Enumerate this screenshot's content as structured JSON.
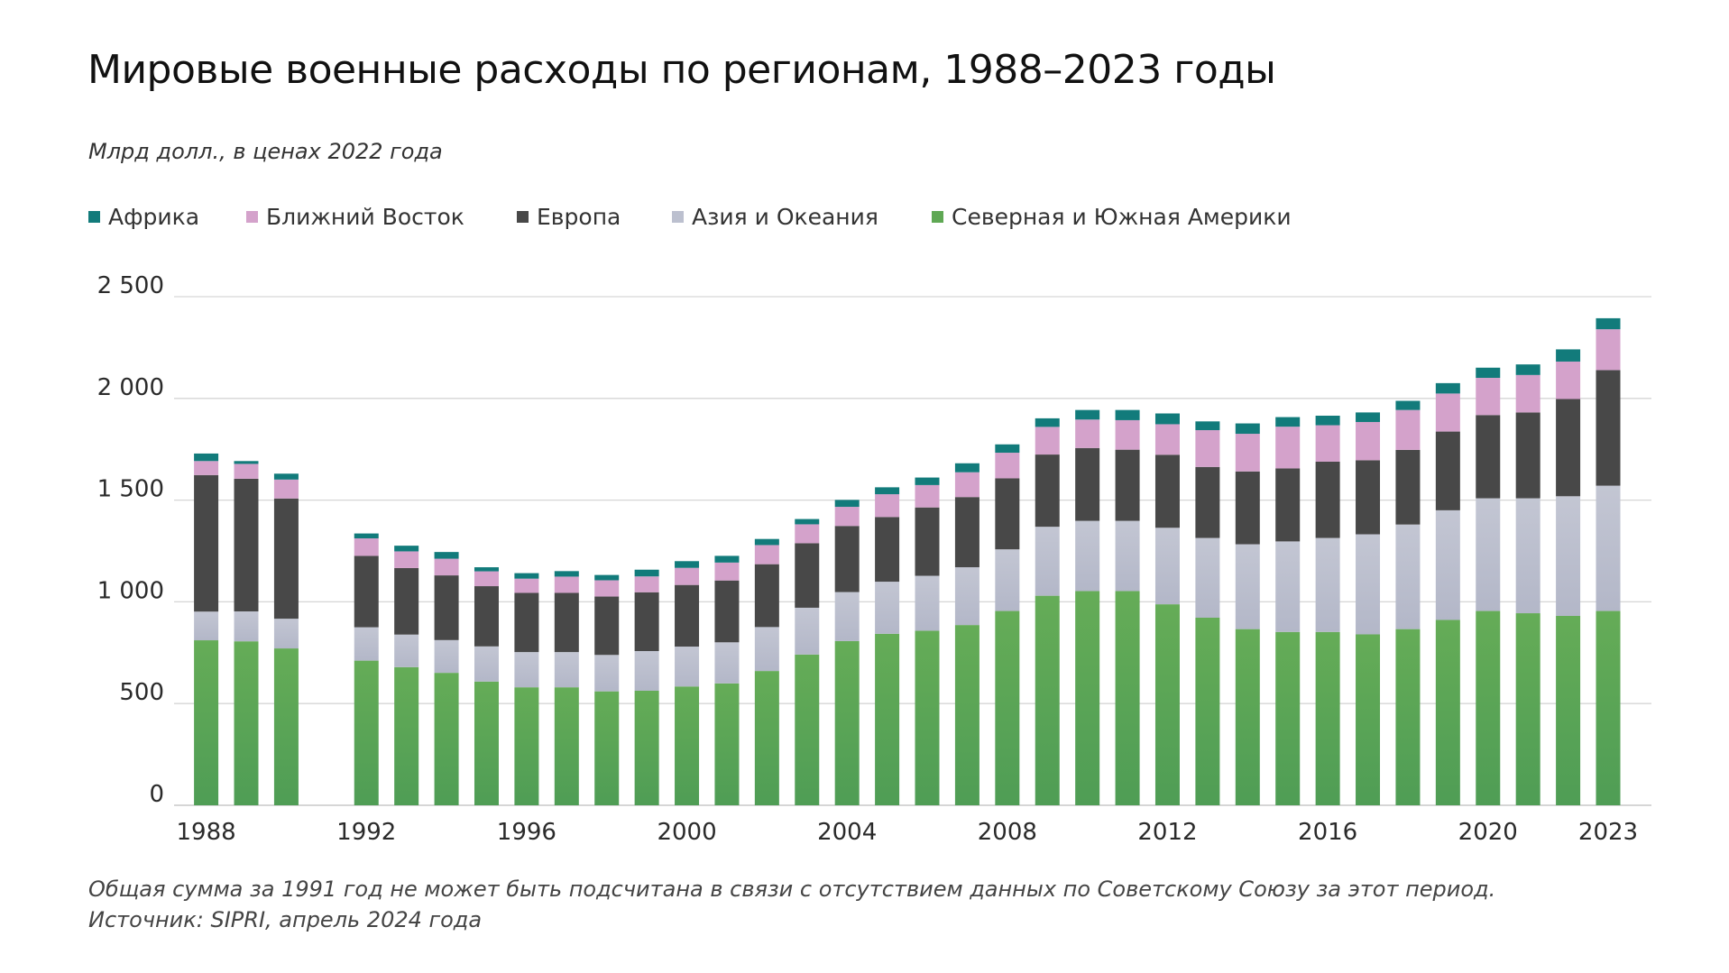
{
  "chart_data": {
    "type": "bar",
    "stacked": true,
    "title": "Мировые военные расходы по регионам, 1988–2023 годы",
    "subtitle": "Млрд долл., в ценах 2022 года",
    "xlabel": "",
    "ylabel": "",
    "ylim": [
      0,
      2500
    ],
    "grid": true,
    "legend_position": "top-left",
    "y_ticks": [
      {
        "value": 0,
        "label": "0"
      },
      {
        "value": 500,
        "label": "500"
      },
      {
        "value": 1000,
        "label": "1 000"
      },
      {
        "value": 1500,
        "label": "1 500"
      },
      {
        "value": 2000,
        "label": "2 000"
      },
      {
        "value": 2500,
        "label": "2 500"
      }
    ],
    "x_ticks": [
      "1988",
      "1992",
      "1996",
      "2000",
      "2004",
      "2008",
      "2012",
      "2016",
      "2020",
      "2023"
    ],
    "categories": [
      1988,
      1989,
      1990,
      1991,
      1992,
      1993,
      1994,
      1995,
      1996,
      1997,
      1998,
      1999,
      2000,
      2001,
      2002,
      2003,
      2004,
      2005,
      2006,
      2007,
      2008,
      2009,
      2010,
      2011,
      2012,
      2013,
      2014,
      2015,
      2016,
      2017,
      2018,
      2019,
      2020,
      2021,
      2022,
      2023
    ],
    "series": [
      {
        "name": "Северная и Южная Америки",
        "color": "#5fa854",
        "values": [
          811,
          806,
          771,
          null,
          711,
          679,
          651,
          608,
          580,
          580,
          560,
          563,
          584,
          599,
          660,
          741,
          807,
          843,
          858,
          886,
          955,
          1030,
          1053,
          1053,
          988,
          922,
          866,
          852,
          852,
          840,
          866,
          911,
          955,
          944,
          931,
          955
        ]
      },
      {
        "name": "Азия и Океания",
        "color": "#bcc0cf",
        "values": [
          141,
          147,
          146,
          null,
          164,
          160,
          161,
          173,
          173,
          173,
          179,
          195,
          196,
          202,
          216,
          230,
          241,
          256,
          270,
          284,
          303,
          339,
          345,
          345,
          376,
          392,
          417,
          445,
          462,
          492,
          514,
          539,
          554,
          565,
          588,
          616
        ]
      },
      {
        "name": "Европа",
        "color": "#484848",
        "values": [
          671,
          652,
          591,
          null,
          351,
          327,
          318,
          296,
          291,
          291,
          287,
          289,
          303,
          304,
          309,
          317,
          325,
          318,
          336,
          345,
          349,
          355,
          358,
          350,
          359,
          349,
          358,
          359,
          375,
          364,
          367,
          387,
          409,
          422,
          478,
          568
        ]
      },
      {
        "name": "Ближний Восток",
        "color": "#d4a2cb",
        "values": [
          69,
          73,
          93,
          null,
          86,
          82,
          82,
          73,
          70,
          80,
          80,
          78,
          84,
          88,
          94,
          93,
          94,
          112,
          110,
          122,
          126,
          136,
          140,
          145,
          150,
          181,
          185,
          205,
          179,
          188,
          196,
          187,
          183,
          184,
          184,
          201
        ]
      },
      {
        "name": "Африка",
        "color": "#127b7b",
        "values": [
          37,
          14,
          29,
          null,
          24,
          28,
          33,
          20,
          27,
          27,
          26,
          33,
          33,
          33,
          30,
          26,
          34,
          34,
          37,
          44,
          41,
          42,
          47,
          50,
          53,
          43,
          51,
          47,
          47,
          47,
          45,
          51,
          50,
          52,
          60,
          54
        ]
      }
    ],
    "legend_order": [
      "Африка",
      "Ближний Восток",
      "Европа",
      "Азия и Океания",
      "Северная и Южная Америки"
    ],
    "footnotes": [
      "Общая сумма за 1991 год не может быть подсчитана в связи с отсутствием данных по Советскому Союзу за этот период.",
      "Источник: SIPRI, апрель 2024 года"
    ]
  }
}
